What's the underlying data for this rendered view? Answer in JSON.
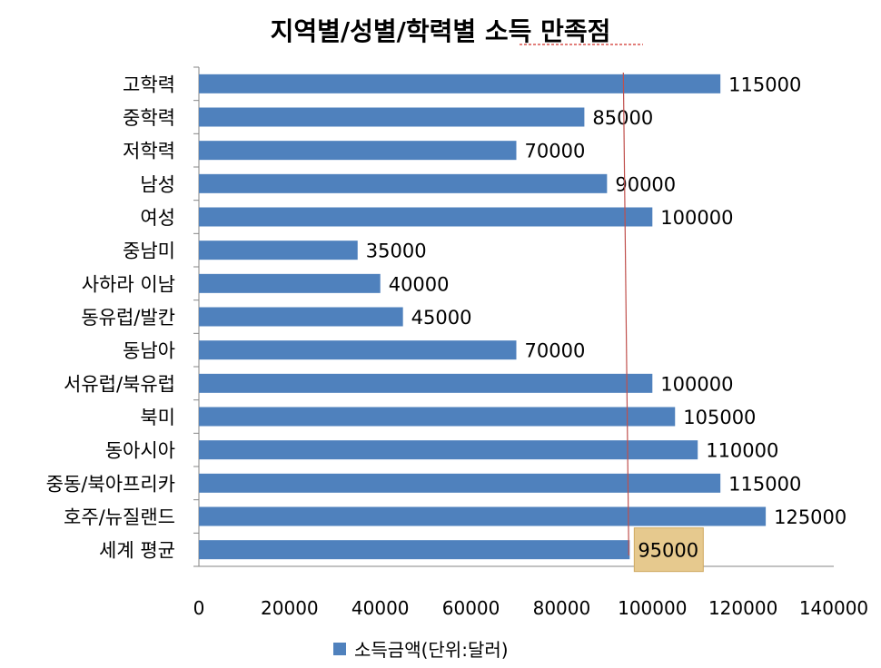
{
  "chart_data": {
    "type": "bar",
    "orientation": "horizontal",
    "title": "지역별/성별/학력별 소득 만족점",
    "categories": [
      "고학력",
      "중학력",
      "저학력",
      "남성",
      "여성",
      "중남미",
      "사하라 이남",
      "동유럽/발칸",
      "동남아",
      "서유럽/북유럽",
      "북미",
      "동아시아",
      "중동/북아프리카",
      "호주/뉴질랜드",
      "세계 평균"
    ],
    "series": [
      {
        "name": "소득금액(단위:달러)",
        "values": [
          115000,
          85000,
          70000,
          90000,
          100000,
          35000,
          40000,
          45000,
          70000,
          100000,
          105000,
          110000,
          115000,
          125000,
          95000
        ]
      }
    ],
    "data_labels": [
      "115000",
      "85000",
      "70000",
      "90000",
      "100000",
      "35000",
      "40000",
      "45000",
      "70000",
      "100000",
      "105000",
      "110000",
      "115000",
      "125000",
      "95000"
    ],
    "x_ticks": [
      "0",
      "20000",
      "40000",
      "60000",
      "80000",
      "100000",
      "120000",
      "140000"
    ],
    "xlim": [
      0,
      140000
    ],
    "reference_line_value": 95000,
    "highlighted_label_index": 14,
    "legend_position": "bottom",
    "grid": false,
    "colors": {
      "bar": "#4f81bd",
      "reference_line": "#c0504d",
      "highlight_fill": "#e6c98e",
      "axis": "#868686"
    }
  }
}
